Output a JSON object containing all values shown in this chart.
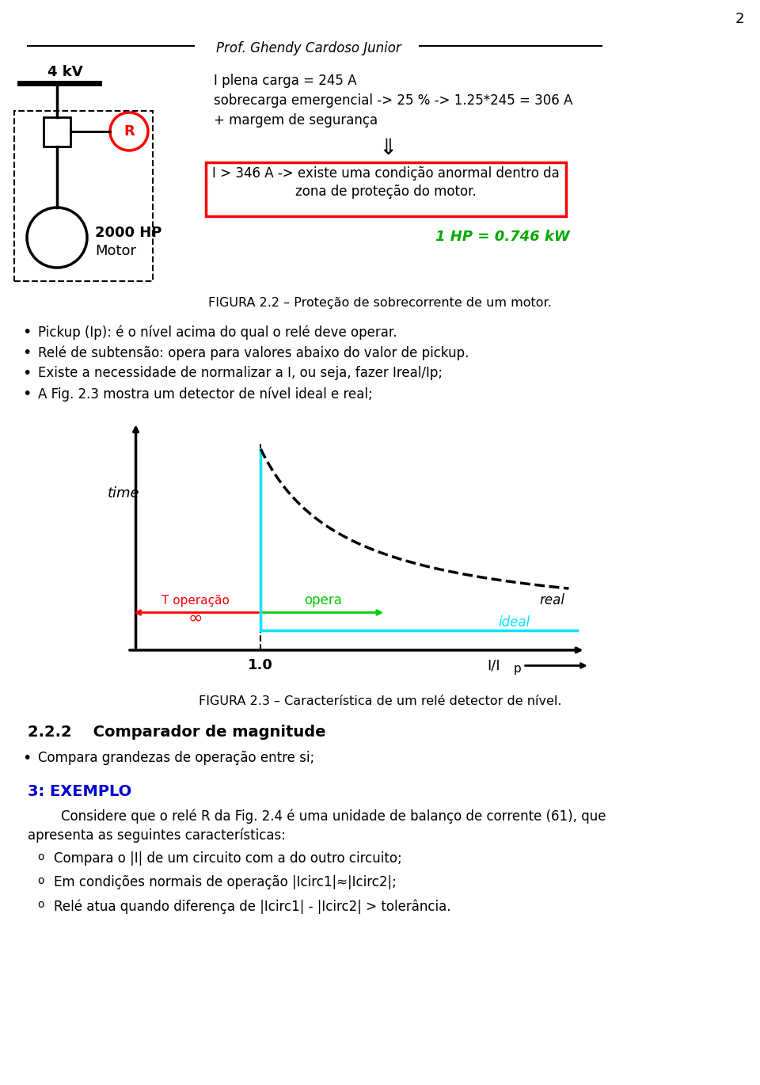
{
  "page_number": "2",
  "header_professor": "Prof. Ghendy Cardoso Junior",
  "fig22_caption": "FIGURA 2.2 – Proteção de sobrecorrente de um motor.",
  "fig22_text1": "I plena carga = 245 A",
  "fig22_text2": "sobrecarga emergencial -> 25 % -> 1.25*245 = 306 A",
  "fig22_text3": "+ margem de segurança",
  "fig22_boxtext1": "I > 346 A -> existe uma condição anormal dentro da",
  "fig22_boxtext2": "zona de proteção do motor.",
  "fig22_hp": "1 HP = 0.746 kW",
  "bullets": [
    "Pickup (Ip): é o nível acima do qual o relé deve operar.",
    "Relé de subtensão: opera para valores abaixo do valor de pickup.",
    "Existe a necessidade de normalizar a I, ou seja, fazer Ireal/Ip;",
    "A Fig. 2.3 mostra um detector de nível ideal e real;"
  ],
  "fig23_caption": "FIGURA 2.3 – Característica de um relé detector de nível.",
  "sec222_title": "2.2.2    Comparador de magnitude",
  "sec222_bullet": "Compara grandezas de operação entre si;",
  "sec3_title": "3: EXEMPLO",
  "sec3_para1": "        Considere que o relé R da Fig. 2.4 é uma unidade de balanço de corrente (61), que",
  "sec3_para2": "apresenta as seguintes características:",
  "sec3_bullets": [
    "Compara o |I| de um circuito com a do outro circuito;",
    "Em condições normais de operação |Icirc1|≈|Icirc2|;",
    "Relé atua quando diferença de |Icirc1| - |Icirc2| > tolerância."
  ],
  "bg_color": "#ffffff",
  "text_color": "#000000",
  "cyan_color": "#00e5ff",
  "red_color": "#ff0000",
  "green_color": "#00cc00",
  "blue_color": "#0000cc"
}
